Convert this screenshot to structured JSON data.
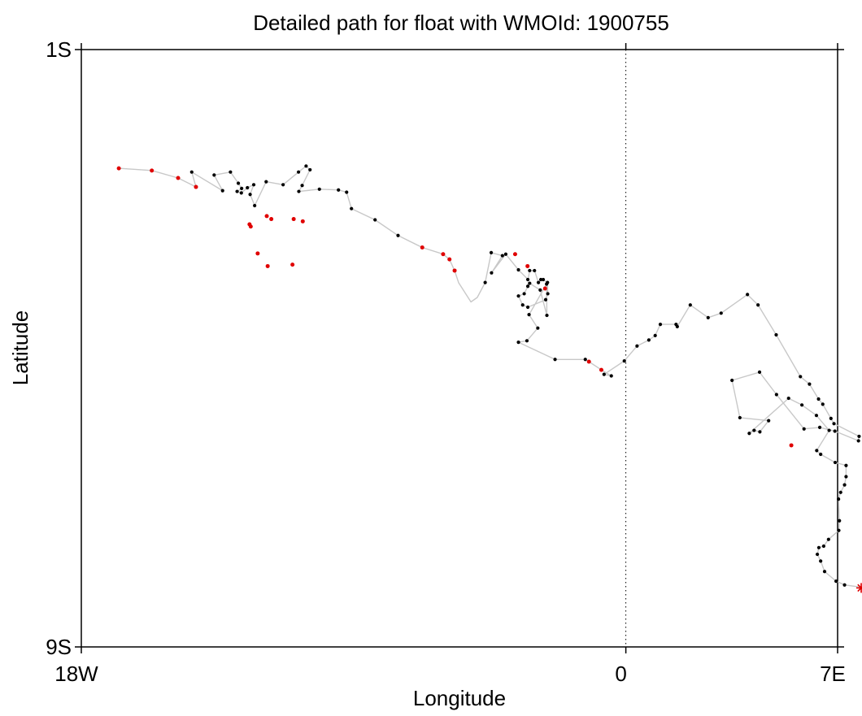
{
  "chart_data": {
    "type": "scatter",
    "title": "Detailed path for float with WMOId: 1900755",
    "xlabel": "Longitude",
    "ylabel": "Latitude",
    "xlim": [
      -18,
      7
    ],
    "ylim": [
      -9,
      -1
    ],
    "x_ticks": [
      {
        "value": -18,
        "label": "18W"
      },
      {
        "value": 0,
        "label": "0"
      },
      {
        "value": 7,
        "label": "7E"
      }
    ],
    "y_ticks": [
      {
        "value": -1,
        "label": "1S"
      },
      {
        "value": -9,
        "label": "9S"
      }
    ],
    "grid": false,
    "reference_line": {
      "axis": "x",
      "value": 0,
      "style": "dotted"
    },
    "colors": {
      "track": "#c8c8c8",
      "profile": "#000000",
      "highlight": "#e00000",
      "latest": "#e00000"
    },
    "series": [
      {
        "role": "track",
        "points": [
          [
            -16.76,
            -2.59
          ],
          [
            -15.67,
            -2.62
          ],
          [
            -14.8,
            -2.72
          ],
          [
            -14.21,
            -2.84
          ],
          [
            -14.35,
            -2.64
          ],
          [
            -13.33,
            -2.89
          ],
          [
            -13.61,
            -2.68
          ],
          [
            -13.07,
            -2.64
          ],
          [
            -12.81,
            -2.79
          ],
          [
            -12.7,
            -2.86
          ],
          [
            -12.85,
            -2.9
          ],
          [
            -12.71,
            -2.92
          ],
          [
            -12.51,
            -2.85
          ],
          [
            -12.3,
            -2.81
          ],
          [
            -12.42,
            -2.94
          ],
          [
            -12.27,
            -3.09
          ],
          [
            -11.89,
            -2.77
          ],
          [
            -11.33,
            -2.81
          ],
          [
            -10.82,
            -2.64
          ],
          [
            -10.57,
            -2.56
          ],
          [
            -10.44,
            -2.61
          ],
          [
            -10.7,
            -2.82
          ],
          [
            -10.81,
            -2.9
          ],
          [
            -10.13,
            -2.87
          ],
          [
            -9.5,
            -2.88
          ],
          [
            -9.23,
            -2.91
          ],
          [
            -9.07,
            -3.13
          ],
          [
            -8.29,
            -3.28
          ],
          [
            -7.53,
            -3.49
          ],
          [
            -6.73,
            -3.65
          ],
          [
            -6.04,
            -3.74
          ],
          [
            -5.83,
            -3.81
          ],
          [
            -5.66,
            -3.96
          ],
          [
            -5.53,
            -4.12
          ],
          [
            -5.12,
            -4.38
          ],
          [
            -4.91,
            -4.32
          ],
          [
            -4.65,
            -4.12
          ],
          [
            -4.45,
            -3.72
          ],
          [
            -4.08,
            -3.76
          ],
          [
            -4.44,
            -3.99
          ],
          [
            -3.97,
            -3.74
          ],
          [
            -3.55,
            -3.95
          ],
          [
            -3.23,
            -4.08
          ],
          [
            -3.18,
            -3.96
          ],
          [
            -3.02,
            -3.96
          ],
          [
            -2.89,
            -4.12
          ],
          [
            -2.81,
            -4.08
          ],
          [
            -2.73,
            -4.08
          ],
          [
            -2.59,
            -4.12
          ],
          [
            -2.58,
            -4.27
          ],
          [
            -2.65,
            -4.35
          ],
          [
            -3.24,
            -4.45
          ],
          [
            -3.41,
            -4.42
          ],
          [
            -3.55,
            -4.3
          ],
          [
            -3.36,
            -4.27
          ],
          [
            -3.24,
            -4.17
          ],
          [
            -3.18,
            -4.13
          ],
          [
            -2.83,
            -4.22
          ],
          [
            -2.61,
            -4.56
          ],
          [
            -2.62,
            -4.14
          ],
          [
            -3.2,
            -4.55
          ],
          [
            -2.91,
            -4.73
          ],
          [
            -3.27,
            -4.9
          ],
          [
            -3.55,
            -4.92
          ],
          [
            -2.34,
            -5.15
          ],
          [
            -1.34,
            -5.15
          ],
          [
            -1.22,
            -5.18
          ],
          [
            -0.81,
            -5.29
          ],
          [
            -0.48,
            -5.37
          ],
          [
            -0.72,
            -5.35
          ],
          [
            -0.05,
            -5.17
          ],
          [
            0.37,
            -4.97
          ],
          [
            0.76,
            -4.89
          ],
          [
            0.97,
            -4.83
          ],
          [
            1.14,
            -4.68
          ],
          [
            1.66,
            -4.68
          ],
          [
            1.7,
            -4.71
          ],
          [
            2.13,
            -4.42
          ],
          [
            2.72,
            -4.59
          ],
          [
            3.15,
            -4.53
          ],
          [
            4.02,
            -4.28
          ],
          [
            4.37,
            -4.42
          ],
          [
            4.97,
            -4.82
          ],
          [
            5.77,
            -5.38
          ],
          [
            6.07,
            -5.48
          ],
          [
            6.37,
            -5.68
          ],
          [
            6.51,
            -5.75
          ],
          [
            6.78,
            -5.94
          ],
          [
            6.88,
            -6.01
          ],
          [
            7.71,
            -6.18
          ],
          [
            7.69,
            -6.24
          ],
          [
            6.91,
            -6.11
          ],
          [
            6.41,
            -6.06
          ],
          [
            5.89,
            -6.08
          ],
          [
            4.98,
            -5.62
          ],
          [
            4.42,
            -5.32
          ],
          [
            3.51,
            -5.43
          ],
          [
            3.77,
            -5.93
          ],
          [
            4.72,
            -5.97
          ],
          [
            4.43,
            -6.12
          ],
          [
            4.24,
            -6.1
          ],
          [
            4.08,
            -6.14
          ],
          [
            5.38,
            -5.67
          ],
          [
            5.82,
            -5.76
          ],
          [
            6.3,
            -5.9
          ],
          [
            6.72,
            -6.1
          ],
          [
            6.31,
            -6.37
          ],
          [
            6.44,
            -6.42
          ],
          [
            6.92,
            -6.53
          ],
          [
            7.28,
            -6.57
          ],
          [
            7.28,
            -6.72
          ],
          [
            7.23,
            -6.83
          ],
          [
            7.1,
            -6.93
          ],
          [
            7.03,
            -7.02
          ],
          [
            7.06,
            -7.31
          ],
          [
            7.04,
            -7.44
          ],
          [
            6.7,
            -7.56
          ],
          [
            6.54,
            -7.65
          ],
          [
            6.38,
            -7.67
          ],
          [
            6.33,
            -7.76
          ],
          [
            6.44,
            -7.85
          ],
          [
            6.57,
            -7.99
          ],
          [
            6.95,
            -8.12
          ],
          [
            7.23,
            -8.17
          ],
          [
            7.77,
            -8.2
          ]
        ]
      },
      {
        "role": "profile",
        "points": [
          [
            -14.35,
            -2.64
          ],
          [
            -13.61,
            -2.68
          ],
          [
            -13.33,
            -2.89
          ],
          [
            -13.07,
            -2.64
          ],
          [
            -12.81,
            -2.79
          ],
          [
            -12.7,
            -2.86
          ],
          [
            -12.85,
            -2.9
          ],
          [
            -12.71,
            -2.92
          ],
          [
            -12.51,
            -2.85
          ],
          [
            -12.3,
            -2.81
          ],
          [
            -12.42,
            -2.94
          ],
          [
            -12.27,
            -3.09
          ],
          [
            -11.89,
            -2.77
          ],
          [
            -11.33,
            -2.81
          ],
          [
            -10.82,
            -2.64
          ],
          [
            -10.57,
            -2.56
          ],
          [
            -10.44,
            -2.61
          ],
          [
            -10.7,
            -2.82
          ],
          [
            -10.81,
            -2.9
          ],
          [
            -10.13,
            -2.87
          ],
          [
            -9.5,
            -2.88
          ],
          [
            -9.23,
            -2.91
          ],
          [
            -9.07,
            -3.13
          ],
          [
            -8.29,
            -3.28
          ],
          [
            -7.53,
            -3.49
          ],
          [
            -4.65,
            -4.12
          ],
          [
            -4.45,
            -3.72
          ],
          [
            -4.08,
            -3.76
          ],
          [
            -4.44,
            -3.99
          ],
          [
            -3.97,
            -3.74
          ],
          [
            -3.55,
            -3.95
          ],
          [
            -3.24,
            -4.08
          ],
          [
            -3.18,
            -3.96
          ],
          [
            -3.02,
            -3.96
          ],
          [
            -2.89,
            -4.12
          ],
          [
            -2.81,
            -4.08
          ],
          [
            -2.73,
            -4.08
          ],
          [
            -2.59,
            -4.12
          ],
          [
            -2.58,
            -4.27
          ],
          [
            -2.65,
            -4.35
          ],
          [
            -3.24,
            -4.45
          ],
          [
            -3.41,
            -4.42
          ],
          [
            -3.55,
            -4.3
          ],
          [
            -3.36,
            -4.27
          ],
          [
            -3.24,
            -4.17
          ],
          [
            -3.18,
            -4.13
          ],
          [
            -2.83,
            -4.22
          ],
          [
            -2.61,
            -4.56
          ],
          [
            -2.62,
            -4.14
          ],
          [
            -3.2,
            -4.55
          ],
          [
            -2.91,
            -4.73
          ],
          [
            -3.27,
            -4.9
          ],
          [
            -3.55,
            -4.92
          ],
          [
            -2.34,
            -5.15
          ],
          [
            -1.34,
            -5.15
          ],
          [
            -0.81,
            -5.29
          ],
          [
            -0.48,
            -5.37
          ],
          [
            -0.72,
            -5.35
          ],
          [
            -0.05,
            -5.17
          ],
          [
            0.37,
            -4.97
          ],
          [
            0.76,
            -4.89
          ],
          [
            0.97,
            -4.83
          ],
          [
            1.14,
            -4.68
          ],
          [
            1.66,
            -4.68
          ],
          [
            1.7,
            -4.71
          ],
          [
            2.13,
            -4.42
          ],
          [
            2.72,
            -4.59
          ],
          [
            3.15,
            -4.53
          ],
          [
            4.02,
            -4.28
          ],
          [
            4.37,
            -4.42
          ],
          [
            4.97,
            -4.82
          ],
          [
            5.77,
            -5.38
          ],
          [
            6.07,
            -5.48
          ],
          [
            6.37,
            -5.68
          ],
          [
            6.51,
            -5.75
          ],
          [
            6.78,
            -5.94
          ],
          [
            6.88,
            -6.01
          ],
          [
            7.71,
            -6.18
          ],
          [
            7.69,
            -6.24
          ],
          [
            6.91,
            -6.11
          ],
          [
            6.41,
            -6.06
          ],
          [
            5.89,
            -6.08
          ],
          [
            4.98,
            -5.62
          ],
          [
            4.42,
            -5.32
          ],
          [
            3.51,
            -5.43
          ],
          [
            3.77,
            -5.93
          ],
          [
            4.72,
            -5.97
          ],
          [
            4.43,
            -6.12
          ],
          [
            4.24,
            -6.1
          ],
          [
            4.08,
            -6.14
          ],
          [
            5.38,
            -5.67
          ],
          [
            5.82,
            -5.76
          ],
          [
            6.3,
            -5.9
          ],
          [
            6.72,
            -6.1
          ],
          [
            6.31,
            -6.37
          ],
          [
            6.44,
            -6.42
          ],
          [
            6.92,
            -6.53
          ],
          [
            7.28,
            -6.57
          ],
          [
            7.28,
            -6.72
          ],
          [
            7.23,
            -6.83
          ],
          [
            7.1,
            -6.93
          ],
          [
            7.03,
            -7.02
          ],
          [
            7.06,
            -7.31
          ],
          [
            7.04,
            -7.44
          ],
          [
            6.7,
            -7.56
          ],
          [
            6.54,
            -7.65
          ],
          [
            6.38,
            -7.67
          ],
          [
            6.33,
            -7.76
          ],
          [
            6.44,
            -7.85
          ],
          [
            6.57,
            -7.99
          ],
          [
            6.95,
            -8.12
          ],
          [
            7.23,
            -8.17
          ]
        ]
      },
      {
        "role": "highlight",
        "points": [
          [
            -16.76,
            -2.59
          ],
          [
            -15.67,
            -2.62
          ],
          [
            -14.8,
            -2.72
          ],
          [
            -14.21,
            -2.84
          ],
          [
            -12.44,
            -3.34
          ],
          [
            -12.4,
            -3.37
          ],
          [
            -11.87,
            -3.23
          ],
          [
            -11.72,
            -3.27
          ],
          [
            -10.98,
            -3.27
          ],
          [
            -10.68,
            -3.3
          ],
          [
            -12.17,
            -3.73
          ],
          [
            -11.84,
            -3.9
          ],
          [
            -11.02,
            -3.88
          ],
          [
            -6.73,
            -3.65
          ],
          [
            -6.04,
            -3.74
          ],
          [
            -5.83,
            -3.81
          ],
          [
            -5.66,
            -3.96
          ],
          [
            -3.66,
            -3.74
          ],
          [
            -3.25,
            -3.9
          ],
          [
            -2.67,
            -4.2
          ],
          [
            -1.22,
            -5.18
          ],
          [
            -0.81,
            -5.29
          ],
          [
            5.47,
            -6.3
          ]
        ]
      },
      {
        "role": "latest",
        "points": [
          [
            7.78,
            -8.21
          ]
        ]
      }
    ]
  }
}
